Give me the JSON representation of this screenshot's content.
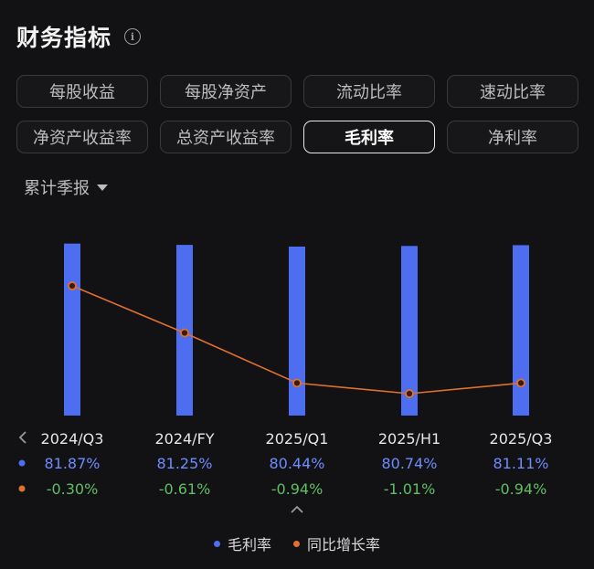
{
  "header": {
    "title": "财务指标",
    "info_icon": "info-icon"
  },
  "tabs": [
    {
      "label": "每股收益",
      "active": false
    },
    {
      "label": "每股净资产",
      "active": false
    },
    {
      "label": "流动比率",
      "active": false
    },
    {
      "label": "速动比率",
      "active": false
    },
    {
      "label": "净资产收益率",
      "active": false
    },
    {
      "label": "总资产收益率",
      "active": false
    },
    {
      "label": "毛利率",
      "active": true
    },
    {
      "label": "净利率",
      "active": false
    }
  ],
  "period_selector": {
    "label": "累计季报"
  },
  "colors": {
    "bar": "#4e6ef2",
    "line": "#e0702f",
    "positive_text": "#6f8cff",
    "growth_text": "#5fbf63"
  },
  "chart_data": {
    "type": "bar",
    "categories": [
      "2024/Q3",
      "2024/FY",
      "2025/Q1",
      "2025/H1",
      "2025/Q3"
    ],
    "series": [
      {
        "name": "毛利率",
        "type": "bar",
        "values": [
          81.87,
          81.25,
          80.44,
          80.74,
          81.11
        ],
        "labels": [
          "81.87%",
          "81.25%",
          "80.44%",
          "80.74%",
          "81.11%"
        ]
      },
      {
        "name": "同比增长率",
        "type": "line",
        "values": [
          -0.3,
          -0.61,
          -0.94,
          -1.01,
          -0.94
        ],
        "labels": [
          "-0.30%",
          "-0.61%",
          "-0.94%",
          "-1.01%",
          "-0.94%"
        ]
      }
    ],
    "legend": "bottom-center"
  }
}
